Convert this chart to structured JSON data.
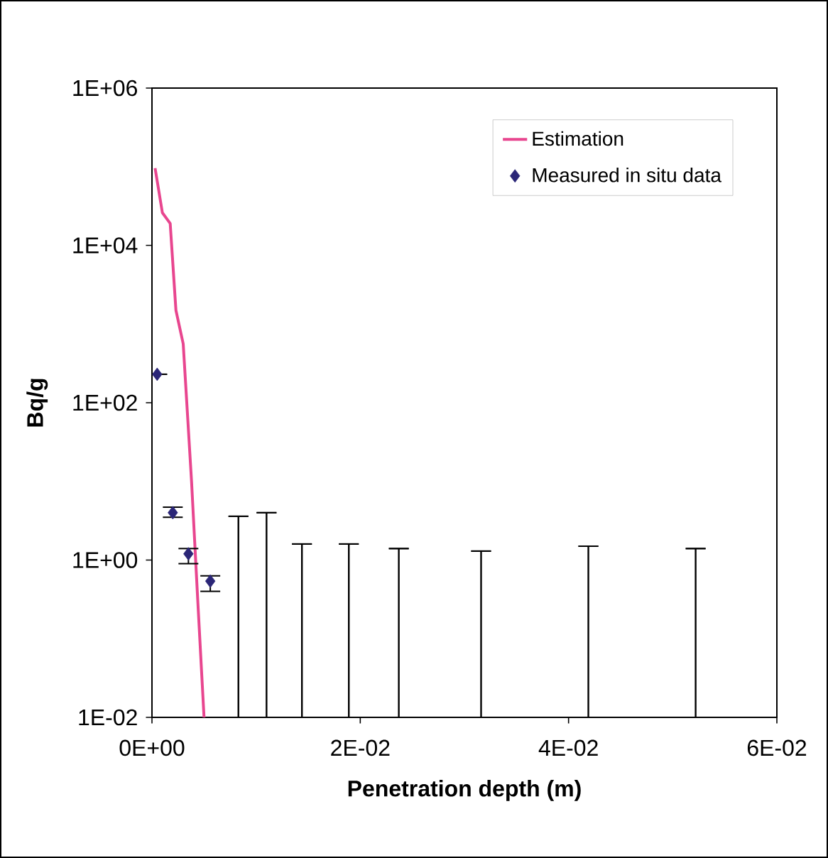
{
  "chart_data": {
    "xlabel": "Penetration depth (m)",
    "ylabel": "Bq/g",
    "log": "y",
    "grid": false,
    "legend": "top right",
    "type": "scatter",
    "xlim": [
      0,
      0.06
    ],
    "ylim": [
      0.01,
      1000000
    ],
    "xticks": [
      {
        "value": 0,
        "label": "0E+00"
      },
      {
        "value": 0.02,
        "label": "2E-02"
      },
      {
        "value": 0.04,
        "label": "4E-02"
      },
      {
        "value": 0.06,
        "label": "6E-02"
      }
    ],
    "yticks": [
      {
        "value": 0.01,
        "label": "1E-02"
      },
      {
        "value": 1,
        "label": "1E+00"
      },
      {
        "value": 100,
        "label": "1E+02"
      },
      {
        "value": 10000,
        "label": "1E+04"
      },
      {
        "value": 1000000,
        "label": "1E+06"
      }
    ],
    "series": [
      {
        "name": "Estimation",
        "type": "line",
        "color": "#e8468f",
        "marker": "none",
        "x": [
          0.0003,
          0.001,
          0.00175,
          0.0023,
          0.003,
          0.0038,
          0.0044,
          0.005
        ],
        "values": [
          96000,
          26000,
          19000,
          1500,
          560,
          10,
          0.3,
          0.01
        ]
      },
      {
        "name": "Measured in situ data",
        "color": "#2b2677",
        "marker": "diamond",
        "x": [
          0.0005,
          0.002,
          0.0035,
          0.0056
        ],
        "values": [
          230,
          4.0,
          1.2,
          0.54
        ],
        "errors": [
          null,
          [
            3.5,
            4.7
          ],
          [
            0.9,
            1.4
          ],
          [
            0.4,
            0.63
          ]
        ]
      },
      {
        "type": "bar",
        "color": "#000000",
        "x": [
          0.0083,
          0.011,
          0.0144,
          0.0189,
          0.0237,
          0.0316,
          0.0419,
          0.0522
        ],
        "values": [
          3.6,
          4.0,
          1.6,
          1.6,
          1.4,
          1.3,
          1.5,
          1.4
        ],
        "errors": [
          0,
          0,
          0,
          0,
          0,
          0,
          0,
          0
        ]
      }
    ]
  }
}
